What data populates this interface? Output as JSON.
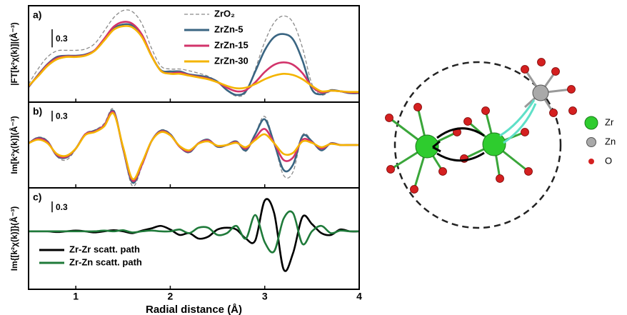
{
  "chart_data": [
    {
      "type": "line",
      "panel_label": "a)",
      "ylabel": "|FT[k²χ(k)]|(Å⁻³)",
      "scale_bar": 0.3,
      "x": [
        0.5,
        0.6,
        0.7,
        0.8,
        0.9,
        1.0,
        1.1,
        1.2,
        1.3,
        1.4,
        1.5,
        1.6,
        1.7,
        1.8,
        1.9,
        2.0,
        2.1,
        2.2,
        2.3,
        2.4,
        2.5,
        2.6,
        2.7,
        2.8,
        2.9,
        3.0,
        3.1,
        3.2,
        3.3,
        3.4,
        3.5,
        3.6,
        3.7,
        3.8,
        3.9,
        4.0
      ],
      "xlim": [
        0.5,
        4
      ],
      "xticks": [
        1,
        2,
        3,
        4
      ],
      "ylim": [
        0,
        1.6
      ],
      "legend": "upper center",
      "series": [
        {
          "name": "ZrO₂",
          "color": "#8a8a8a",
          "linestyle": "dashed",
          "values": [
            0.3,
            0.55,
            0.75,
            0.85,
            0.86,
            0.86,
            0.88,
            0.97,
            1.18,
            1.4,
            1.52,
            1.5,
            1.3,
            0.9,
            0.6,
            0.55,
            0.55,
            0.52,
            0.48,
            0.43,
            0.34,
            0.2,
            0.1,
            0.16,
            0.55,
            1.0,
            1.32,
            1.43,
            1.32,
            0.9,
            0.3,
            0.12,
            0.18,
            0.18,
            0.16,
            0.16
          ]
        },
        {
          "name": "ZrZn-5",
          "color": "#3a6582",
          "linestyle": "solid",
          "values": [
            0.25,
            0.45,
            0.63,
            0.75,
            0.77,
            0.77,
            0.79,
            0.86,
            1.04,
            1.22,
            1.29,
            1.27,
            1.1,
            0.77,
            0.53,
            0.51,
            0.51,
            0.46,
            0.44,
            0.41,
            0.34,
            0.2,
            0.12,
            0.18,
            0.51,
            0.86,
            1.08,
            1.13,
            1.04,
            0.69,
            0.21,
            0.13,
            0.2,
            0.18,
            0.15,
            0.15
          ]
        },
        {
          "name": "ZrZn-15",
          "color": "#d2346b",
          "linestyle": "solid",
          "values": [
            0.26,
            0.44,
            0.62,
            0.73,
            0.76,
            0.76,
            0.78,
            0.86,
            1.05,
            1.25,
            1.33,
            1.3,
            1.12,
            0.78,
            0.52,
            0.48,
            0.49,
            0.45,
            0.42,
            0.39,
            0.33,
            0.24,
            0.18,
            0.2,
            0.33,
            0.5,
            0.62,
            0.66,
            0.62,
            0.48,
            0.26,
            0.16,
            0.19,
            0.18,
            0.16,
            0.16
          ]
        },
        {
          "name": "ZrZn-30",
          "color": "#f4b400",
          "linestyle": "solid",
          "values": [
            0.27,
            0.43,
            0.6,
            0.71,
            0.75,
            0.75,
            0.77,
            0.85,
            1.02,
            1.2,
            1.26,
            1.24,
            1.08,
            0.77,
            0.52,
            0.47,
            0.47,
            0.44,
            0.41,
            0.38,
            0.33,
            0.27,
            0.23,
            0.24,
            0.3,
            0.38,
            0.44,
            0.47,
            0.45,
            0.38,
            0.27,
            0.18,
            0.19,
            0.18,
            0.17,
            0.17
          ]
        }
      ]
    },
    {
      "type": "line",
      "panel_label": "b)",
      "ylabel": "Im[k²χ(k)](Å⁻³)",
      "scale_bar": 0.3,
      "x": [
        0.5,
        0.6,
        0.7,
        0.8,
        0.9,
        1.0,
        1.1,
        1.2,
        1.3,
        1.4,
        1.5,
        1.6,
        1.7,
        1.8,
        1.9,
        2.0,
        2.1,
        2.2,
        2.3,
        2.4,
        2.5,
        2.6,
        2.7,
        2.8,
        2.9,
        3.0,
        3.1,
        3.2,
        3.3,
        3.4,
        3.5,
        3.6,
        3.7,
        3.8,
        3.9,
        4.0
      ],
      "xlim": [
        0.5,
        4
      ],
      "xticks": [
        1,
        2,
        3,
        4
      ],
      "ylim": [
        -1.2,
        1.2
      ],
      "series": [
        {
          "color": "#8a8a8a",
          "linestyle": "dashed",
          "values": [
            0.05,
            0.22,
            0.12,
            -0.32,
            -0.42,
            -0.12,
            0.32,
            0.42,
            0.6,
            1.0,
            -0.12,
            -1.15,
            -0.6,
            0.1,
            0.42,
            0.32,
            -0.05,
            -0.22,
            0.05,
            0.16,
            -0.05,
            0.0,
            0.1,
            -0.18,
            0.32,
            0.8,
            0.05,
            -0.85,
            -0.75,
            0.28,
            0.12,
            -0.15,
            0.05,
            0,
            0,
            0
          ]
        },
        {
          "color": "#3a6582",
          "linestyle": "solid",
          "values": [
            0.05,
            0.2,
            0.1,
            -0.3,
            -0.35,
            -0.1,
            0.3,
            0.4,
            0.55,
            0.95,
            -0.1,
            -1.05,
            -0.55,
            0.1,
            0.4,
            0.3,
            -0.05,
            -0.2,
            0.05,
            0.15,
            -0.05,
            0.0,
            0.1,
            -0.15,
            0.3,
            0.72,
            0.05,
            -0.7,
            -0.55,
            0.25,
            0.1,
            -0.15,
            0.05,
            0,
            0,
            0
          ]
        },
        {
          "color": "#d2346b",
          "linestyle": "solid",
          "values": [
            0.05,
            0.18,
            0.08,
            -0.28,
            -0.33,
            -0.1,
            0.3,
            0.38,
            0.55,
            0.92,
            -0.08,
            -1.0,
            -0.55,
            0.1,
            0.38,
            0.28,
            -0.05,
            -0.18,
            0.05,
            0.13,
            -0.03,
            0.0,
            0.08,
            -0.1,
            0.2,
            0.45,
            0.05,
            -0.42,
            -0.35,
            0.15,
            0.08,
            -0.1,
            0.04,
            0,
            0,
            0
          ]
        },
        {
          "color": "#f4b400",
          "linestyle": "solid",
          "values": [
            0.05,
            0.15,
            0.05,
            -0.25,
            -0.3,
            -0.1,
            0.28,
            0.36,
            0.52,
            0.88,
            -0.05,
            -0.95,
            -0.5,
            0.1,
            0.36,
            0.27,
            -0.03,
            -0.15,
            0.04,
            0.1,
            -0.02,
            0.0,
            0.06,
            -0.06,
            0.14,
            0.3,
            0.05,
            -0.25,
            -0.22,
            0.1,
            0.06,
            -0.06,
            0.03,
            0,
            0,
            0
          ]
        }
      ]
    },
    {
      "type": "line",
      "panel_label": "c)",
      "ylabel": "Im{[k²χ(k)]}(Å⁻³)",
      "scale_bar": 0.3,
      "xlabel": "Radial distance (Å)",
      "x": [
        0.5,
        0.6,
        0.7,
        0.8,
        0.9,
        1.0,
        1.1,
        1.2,
        1.3,
        1.4,
        1.5,
        1.6,
        1.7,
        1.8,
        1.9,
        2.0,
        2.1,
        2.2,
        2.3,
        2.4,
        2.5,
        2.6,
        2.7,
        2.8,
        2.9,
        3.0,
        3.1,
        3.2,
        3.3,
        3.4,
        3.5,
        3.6,
        3.7,
        3.8,
        3.9,
        4.0
      ],
      "xlim": [
        0.5,
        4
      ],
      "xticks": [
        1,
        2,
        3,
        4
      ],
      "ylim": [
        -1.6,
        1.2
      ],
      "legend": "lower left",
      "series": [
        {
          "name": "Zr-Zr scatt. path",
          "color": "#000000",
          "linestyle": "solid",
          "values": [
            0,
            0,
            0,
            -0.02,
            0,
            0.02,
            0,
            -0.03,
            0,
            0.03,
            0,
            -0.05,
            0.02,
            0.08,
            0.15,
            0.05,
            -0.1,
            -0.05,
            -0.2,
            -0.15,
            0.05,
            0.1,
            0.05,
            -0.2,
            -0.25,
            0.85,
            0.5,
            -1.05,
            -0.6,
            0.4,
            0.2,
            -0.05,
            -0.1,
            0.05,
            0,
            0
          ]
        },
        {
          "name": "Zr-Zn scatt. path",
          "color": "#1f7a3a",
          "linestyle": "solid",
          "values": [
            0,
            0,
            0,
            0,
            0,
            0,
            0,
            0,
            0.02,
            0,
            0.03,
            -0.03,
            0,
            0.02,
            0,
            0,
            0.05,
            -0.05,
            0.1,
            0.1,
            -0.1,
            -0.05,
            0.15,
            -0.2,
            0.45,
            -0.3,
            -0.55,
            0.35,
            0.5,
            -0.35,
            0,
            0.15,
            -0.05,
            0.02,
            0,
            0
          ]
        }
      ]
    }
  ],
  "diagram": {
    "legend": [
      "Zr",
      "Zn",
      "O"
    ]
  }
}
